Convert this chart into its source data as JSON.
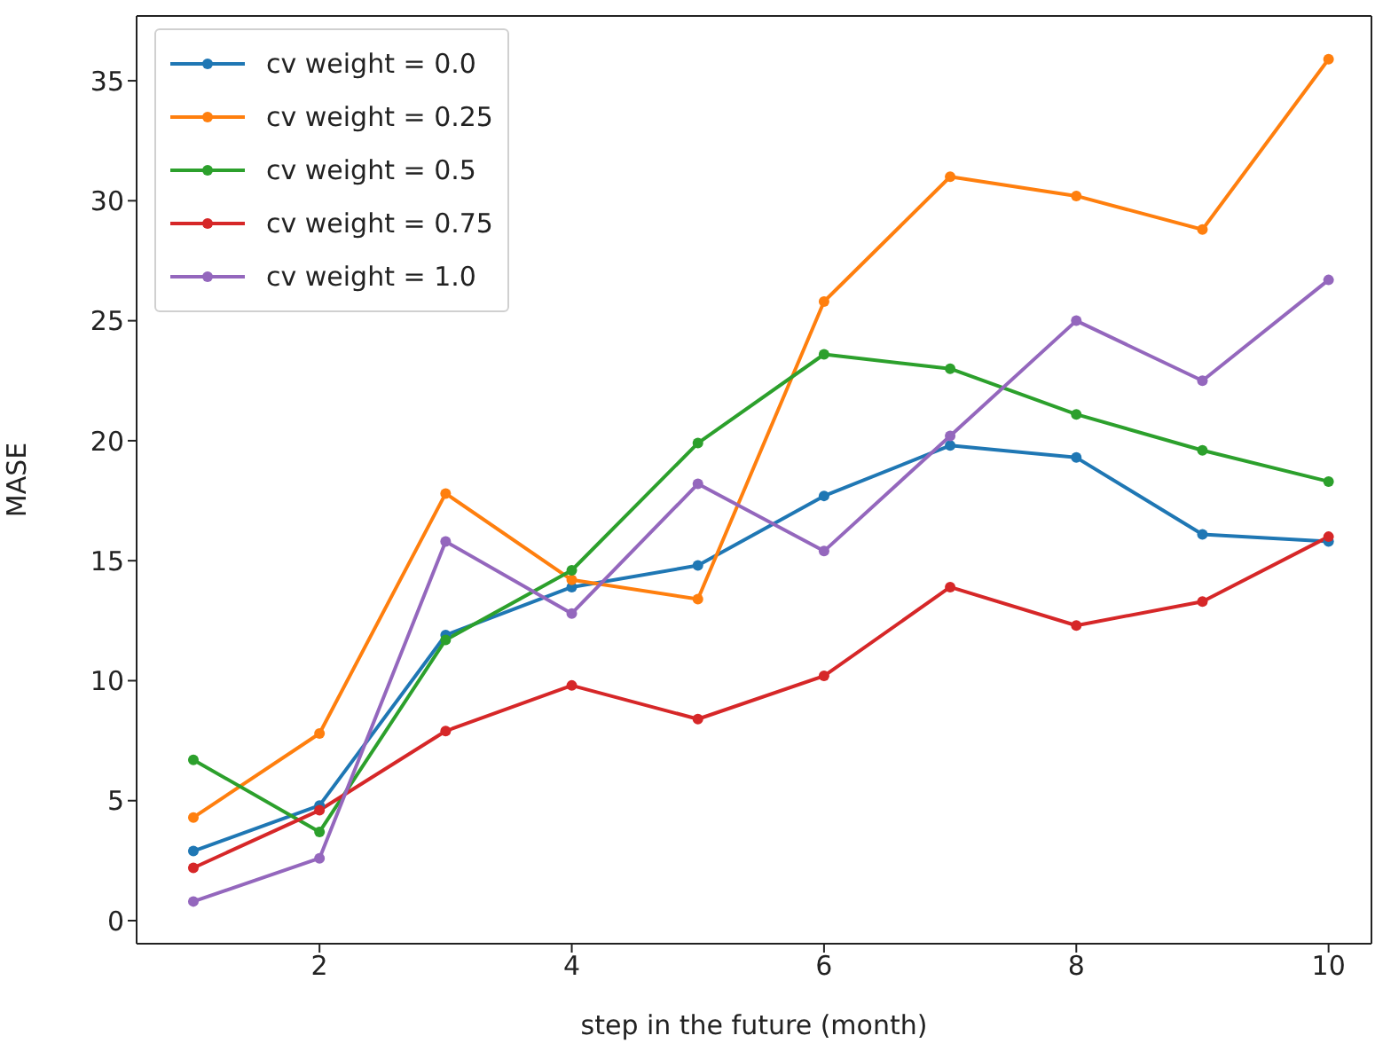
{
  "chart_data": {
    "type": "line",
    "xlabel": "step in the future (month)",
    "ylabel": "MASE",
    "x": [
      1,
      2,
      3,
      4,
      5,
      6,
      7,
      8,
      9,
      10
    ],
    "xlim": [
      0.55,
      10.34
    ],
    "xticks": [
      2,
      4,
      6,
      8,
      10
    ],
    "ylim": [
      -0.96,
      37.7
    ],
    "yticks": [
      0,
      5,
      10,
      15,
      20,
      25,
      30,
      35
    ],
    "grid": false,
    "legend": "top left",
    "marker": "circle",
    "line_style": "solid",
    "series": [
      {
        "name": "cv weight = 0.0",
        "color": "#1f77b4",
        "values": [
          2.9,
          4.8,
          11.9,
          13.9,
          14.8,
          17.7,
          19.8,
          19.3,
          16.1,
          15.8
        ]
      },
      {
        "name": "cv weight = 0.25",
        "color": "#ff7f0e",
        "values": [
          4.3,
          7.8,
          17.8,
          14.2,
          13.4,
          25.8,
          31.0,
          30.2,
          28.8,
          35.9
        ]
      },
      {
        "name": "cv weight = 0.5",
        "color": "#2ca02c",
        "values": [
          6.7,
          3.7,
          11.7,
          14.6,
          19.9,
          23.6,
          23.0,
          21.1,
          19.6,
          18.3
        ]
      },
      {
        "name": "cv weight = 0.75",
        "color": "#d62728",
        "values": [
          2.2,
          4.6,
          7.9,
          9.8,
          8.4,
          10.2,
          13.9,
          12.3,
          13.3,
          16.0
        ]
      },
      {
        "name": "cv weight = 1.0",
        "color": "#9467bd",
        "values": [
          0.8,
          2.6,
          15.8,
          12.8,
          18.2,
          15.4,
          20.2,
          25.0,
          22.5,
          26.7
        ]
      }
    ]
  }
}
